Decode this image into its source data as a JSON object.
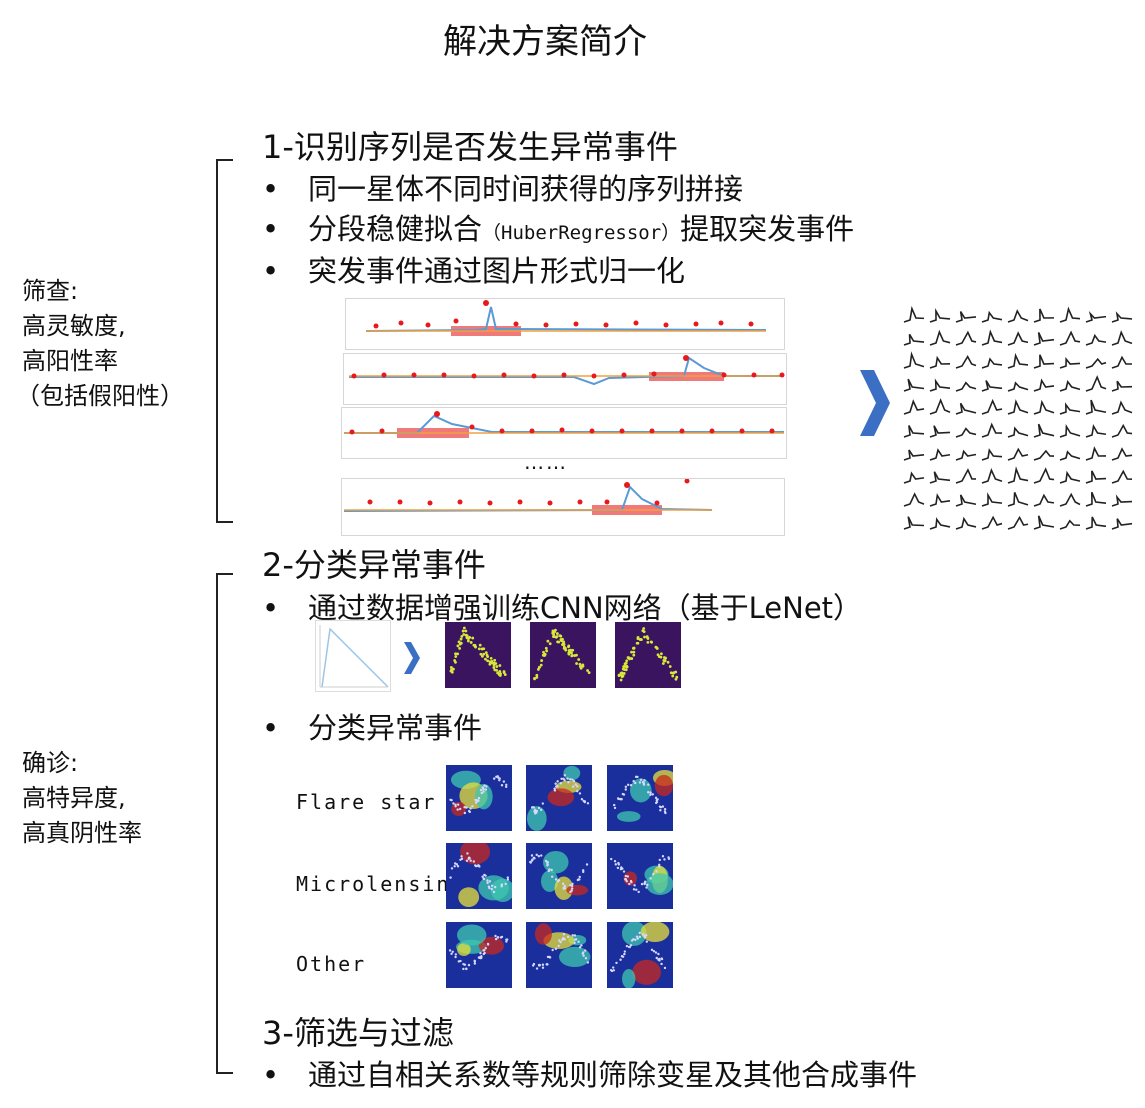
{
  "page_title": "解决方案简介",
  "screening": {
    "bracket_label": [
      "筛查:",
      "高灵敏度,",
      "高阳性率",
      "（包括假阳性）"
    ],
    "heading": "1-识别序列是否发生异常事件",
    "bullets": [
      "同一星体不同时间获得的序列拼接",
      "突发事件通过图片形式归一化"
    ],
    "bullet2_prefix": "分段稳健拟合",
    "bullet2_method": "（HuberRegressor）",
    "bullet2_suffix": "提取突发事件",
    "ellipsis": "……",
    "arrow_icon": "chevron-right-icon"
  },
  "diagnosis": {
    "bracket_label": [
      "确诊:",
      "高特异度,",
      "高真阴性率"
    ],
    "heading": "2-分类异常事件",
    "bullet_cnn": "通过数据增强训练CNN网络（基于LeNet）",
    "bullet_classify": "分类异常事件",
    "classes": [
      "Flare star",
      "Microlensing",
      "Other"
    ],
    "heatmap_colors": {
      "low": "#1a2f9c",
      "mid": "#3fc8b0",
      "high": "#e8e23a",
      "hot": "#c8281e"
    },
    "augment_colors": {
      "background": "#3b1460",
      "points": "#d8e83a"
    }
  },
  "filter": {
    "heading": "3-筛选与过滤",
    "bullet": "通过自相关系数等规则筛除变星及其他合成事件"
  },
  "colors": {
    "accent_arrow": "#3b6fc4",
    "highlight": "#f07a7a",
    "marker": "#e8191a",
    "series": "#5b9bd5",
    "fit": "#f0a040"
  }
}
